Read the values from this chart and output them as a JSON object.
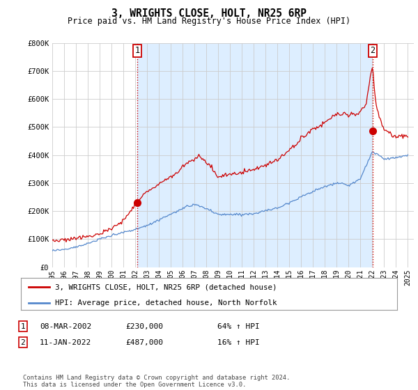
{
  "title": "3, WRIGHTS CLOSE, HOLT, NR25 6RP",
  "subtitle": "Price paid vs. HM Land Registry's House Price Index (HPI)",
  "background_color": "#ffffff",
  "plot_bg_color": "#ffffff",
  "shaded_bg_color": "#ddeeff",
  "grid_color": "#cccccc",
  "ylabel_ticks": [
    "£0",
    "£100K",
    "£200K",
    "£300K",
    "£400K",
    "£500K",
    "£600K",
    "£700K",
    "£800K"
  ],
  "ytick_values": [
    0,
    100000,
    200000,
    300000,
    400000,
    500000,
    600000,
    700000,
    800000
  ],
  "ylim": [
    0,
    800000
  ],
  "xlim_start": 1995.0,
  "xlim_end": 2025.5,
  "xtick_years": [
    1995,
    1996,
    1997,
    1998,
    1999,
    2000,
    2001,
    2002,
    2003,
    2004,
    2005,
    2006,
    2007,
    2008,
    2009,
    2010,
    2011,
    2012,
    2013,
    2014,
    2015,
    2016,
    2017,
    2018,
    2019,
    2020,
    2021,
    2022,
    2023,
    2024,
    2025
  ],
  "hpi_color": "#5588cc",
  "price_color": "#cc0000",
  "vline_color": "#cc0000",
  "vline_style": ":",
  "sale1_x": 2002.19,
  "sale1_y": 230000,
  "sale1_label": "1",
  "sale2_x": 2022.04,
  "sale2_y": 487000,
  "sale2_label": "2",
  "legend_label_price": "3, WRIGHTS CLOSE, HOLT, NR25 6RP (detached house)",
  "legend_label_hpi": "HPI: Average price, detached house, North Norfolk",
  "footer_text": "Contains HM Land Registry data © Crown copyright and database right 2024.\nThis data is licensed under the Open Government Licence v3.0.",
  "table_rows": [
    {
      "num": "1",
      "date": "08-MAR-2002",
      "price": "£230,000",
      "hpi": "64% ↑ HPI"
    },
    {
      "num": "2",
      "date": "11-JAN-2022",
      "price": "£487,000",
      "hpi": "16% ↑ HPI"
    }
  ]
}
